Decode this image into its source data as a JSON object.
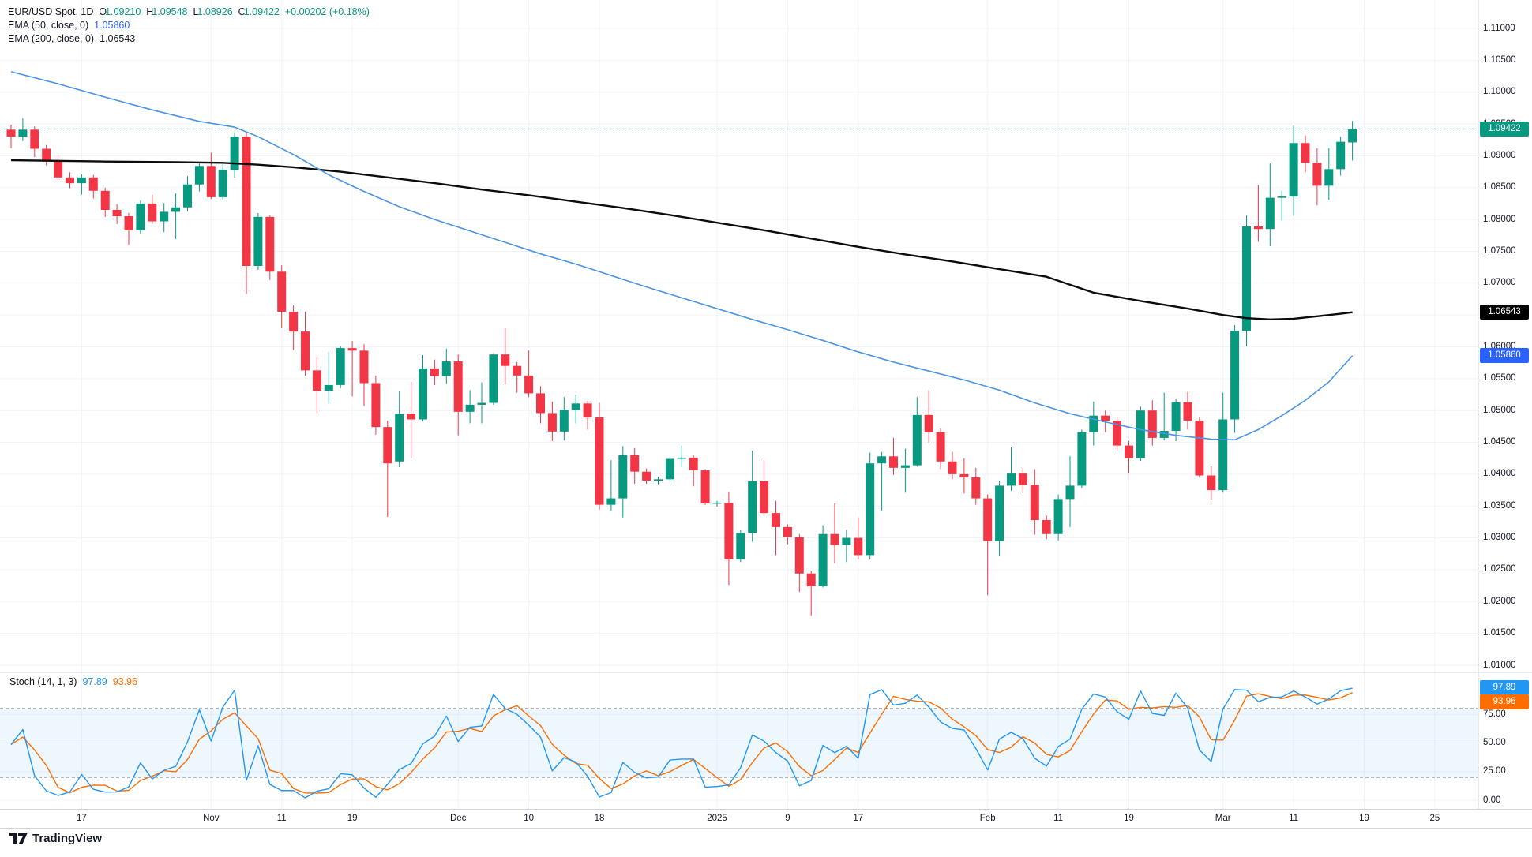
{
  "header": {
    "symbol_label": "EUR/USD Spot, 1D",
    "ohlc": [
      {
        "k": "O",
        "v": "1.09210"
      },
      {
        "k": "H",
        "v": "1.09548"
      },
      {
        "k": "L",
        "v": "1.08926"
      },
      {
        "k": "C",
        "v": "1.09422"
      }
    ],
    "change": "+0.00202 (+0.18%)",
    "ema50_label": "EMA (50, close, 0)",
    "ema50_value": "1.05860",
    "ema200_label": "EMA (200, close, 0)",
    "ema200_value": "1.06543"
  },
  "stoch_header": {
    "label": "Stoch (14, 1, 3)",
    "k_value": "97.89",
    "d_value": "93.96"
  },
  "footer": {
    "logo_text": "TradingView"
  },
  "colors": {
    "up": "#089981",
    "down": "#f23645",
    "ema50": "#4a94e4",
    "ema50_badge": "#2962ff",
    "ema200": "#0c0c0c",
    "ema200_badge": "#000000",
    "stoch_k": "#2196f3",
    "stoch_d": "#ff6d00",
    "grid": "#f0f3fa",
    "band_line": "#696d78",
    "band_fill": "#2196f3",
    "axis_text": "#131722",
    "border": "#d1d4dc",
    "last_price_line": "#089981"
  },
  "chart_data": {
    "type": "candlestick",
    "symbol": "EUR/USD Spot",
    "timeframe": "1D",
    "price_axis": {
      "min": 1.01,
      "max": 1.11,
      "tick_step": 0.005
    },
    "y_tick_labels": [
      "1.11000",
      "1.10500",
      "1.10000",
      "1.09500",
      "1.09000",
      "1.08500",
      "1.08000",
      "1.07500",
      "1.07000",
      "1.06500",
      "1.06000",
      "1.05500",
      "1.05000",
      "1.04500",
      "1.04000",
      "1.03500",
      "1.03000",
      "1.02500",
      "1.02000",
      "1.01500",
      "1.01000"
    ],
    "stoch_axis": {
      "min": 0,
      "max": 100,
      "ticks": [
        75,
        50,
        25,
        0
      ],
      "tick_labels": [
        "75.00",
        "50.00",
        "25.00",
        "0.00"
      ],
      "bands": [
        80,
        20
      ]
    },
    "x_ticks": [
      {
        "label": "17",
        "i": 6
      },
      {
        "label": "Nov",
        "i": 17
      },
      {
        "label": "11",
        "i": 23
      },
      {
        "label": "19",
        "i": 29
      },
      {
        "label": "Dec",
        "i": 38
      },
      {
        "label": "10",
        "i": 44
      },
      {
        "label": "18",
        "i": 50
      },
      {
        "label": "2025",
        "i": 60
      },
      {
        "label": "9",
        "i": 66
      },
      {
        "label": "17",
        "i": 72
      },
      {
        "label": "Feb",
        "i": 83
      },
      {
        "label": "11",
        "i": 89
      },
      {
        "label": "19",
        "i": 95
      },
      {
        "label": "Mar",
        "i": 103
      },
      {
        "label": "11",
        "i": 109
      },
      {
        "label": "19",
        "i": 115
      },
      {
        "label": "25",
        "i": 121
      }
    ],
    "last_price": 1.09422,
    "badges": [
      {
        "text": "1.09422",
        "price": 1.09422,
        "bg": "#089981"
      },
      {
        "text": "1.06543",
        "price": 1.06543,
        "bg": "#000000"
      },
      {
        "text": "1.05860",
        "price": 1.0586,
        "bg": "#2962ff"
      }
    ],
    "indicator": {
      "name": "Stoch",
      "params": [
        14,
        1,
        3
      ],
      "k": 97.89,
      "d": 93.96
    },
    "series": [
      {
        "name": "EMA 50",
        "points": [
          [
            0,
            1.1032
          ],
          [
            4,
            1.1013
          ],
          [
            8,
            1.0992
          ],
          [
            12,
            1.0972
          ],
          [
            16,
            1.0954
          ],
          [
            19,
            1.0945
          ],
          [
            21,
            1.093
          ],
          [
            24,
            1.0902
          ],
          [
            27,
            1.087
          ],
          [
            30,
            1.0844
          ],
          [
            33,
            1.082
          ],
          [
            36,
            1.08
          ],
          [
            39,
            1.0782
          ],
          [
            42,
            1.0764
          ],
          [
            45,
            1.0746
          ],
          [
            48,
            1.073
          ],
          [
            51,
            1.0712
          ],
          [
            54,
            1.0694
          ],
          [
            57,
            1.0677
          ],
          [
            60,
            1.066
          ],
          [
            63,
            1.0643
          ],
          [
            66,
            1.0627
          ],
          [
            69,
            1.061
          ],
          [
            72,
            1.0592
          ],
          [
            75,
            1.0576
          ],
          [
            78,
            1.0562
          ],
          [
            81,
            1.0548
          ],
          [
            84,
            1.0532
          ],
          [
            87,
            1.0512
          ],
          [
            90,
            1.0495
          ],
          [
            93,
            1.0482
          ],
          [
            96,
            1.047
          ],
          [
            99,
            1.0461
          ],
          [
            102,
            1.0455
          ],
          [
            104,
            1.0454
          ],
          [
            106,
            1.047
          ],
          [
            108,
            1.0492
          ],
          [
            110,
            1.0516
          ],
          [
            112,
            1.0545
          ],
          [
            114,
            1.0586
          ]
        ]
      },
      {
        "name": "EMA 200",
        "points": [
          [
            0,
            1.0893
          ],
          [
            8,
            1.0891
          ],
          [
            14,
            1.089
          ],
          [
            18,
            1.0889
          ],
          [
            21,
            1.0886
          ],
          [
            24,
            1.0882
          ],
          [
            28,
            1.0875
          ],
          [
            32,
            1.0866
          ],
          [
            36,
            1.0857
          ],
          [
            40,
            1.0847
          ],
          [
            44,
            1.0838
          ],
          [
            48,
            1.0828
          ],
          [
            52,
            1.0818
          ],
          [
            56,
            1.0807
          ],
          [
            60,
            1.0795
          ],
          [
            64,
            1.0783
          ],
          [
            68,
            1.077
          ],
          [
            72,
            1.0757
          ],
          [
            76,
            1.0745
          ],
          [
            80,
            1.0734
          ],
          [
            84,
            1.0722
          ],
          [
            88,
            1.071
          ],
          [
            92,
            1.0685
          ],
          [
            96,
            1.0672
          ],
          [
            100,
            1.066
          ],
          [
            103,
            1.065
          ],
          [
            105,
            1.0645
          ],
          [
            107,
            1.0643
          ],
          [
            109,
            1.0644
          ],
          [
            111,
            1.0648
          ],
          [
            113,
            1.0652
          ],
          [
            114,
            1.06543
          ]
        ]
      }
    ],
    "candles": [
      [
        "Oct 9",
        1.0941,
        1.0949,
        1.0912,
        1.093
      ],
      [
        "Oct 10",
        1.093,
        1.0959,
        1.0923,
        1.0941
      ],
      [
        "Oct 11",
        1.0941,
        1.0946,
        1.0898,
        1.0911
      ],
      [
        "Oct 14",
        1.0911,
        1.0917,
        1.0885,
        1.0891
      ],
      [
        "Oct 15",
        1.0891,
        1.09,
        1.0862,
        1.0866
      ],
      [
        "Oct 16",
        1.0866,
        1.0874,
        1.0849,
        1.0857
      ],
      [
        "Oct 17",
        1.0857,
        1.0871,
        1.0839,
        1.0866
      ],
      [
        "Oct 18",
        1.0866,
        1.087,
        1.0833,
        1.0845
      ],
      [
        "Oct 21",
        1.0845,
        1.085,
        1.0804,
        1.0815
      ],
      [
        "Oct 22",
        1.0815,
        1.0824,
        1.0793,
        1.0805
      ],
      [
        "Oct 23",
        1.0805,
        1.081,
        1.076,
        1.0783
      ],
      [
        "Oct 24",
        1.0783,
        1.083,
        1.0778,
        1.0825
      ],
      [
        "Oct 25",
        1.0825,
        1.0839,
        1.0793,
        1.0797
      ],
      [
        "Oct 28",
        1.0797,
        1.0826,
        1.078,
        1.0812
      ],
      [
        "Oct 29",
        1.0812,
        1.0841,
        1.0769,
        1.0819
      ],
      [
        "Oct 30",
        1.0819,
        1.0868,
        1.0813,
        1.0855
      ],
      [
        "Oct 31",
        1.0855,
        1.0888,
        1.0844,
        1.0884
      ],
      [
        "Nov 1",
        1.0884,
        1.0905,
        1.0832,
        1.0835
      ],
      [
        "Nov 4",
        1.0835,
        1.0887,
        1.083,
        1.0878
      ],
      [
        "Nov 5",
        1.0878,
        1.0937,
        1.0866,
        1.093
      ],
      [
        "Nov 6",
        1.093,
        1.0937,
        1.0683,
        1.0727
      ],
      [
        "Nov 7",
        1.0727,
        1.081,
        1.0721,
        1.0804
      ],
      [
        "Nov 8",
        1.0804,
        1.0806,
        1.0705,
        1.0718
      ],
      [
        "Nov 11",
        1.0718,
        1.0728,
        1.0629,
        1.0655
      ],
      [
        "Nov 12",
        1.0655,
        1.0665,
        1.0595,
        1.0624
      ],
      [
        "Nov 13",
        1.0624,
        1.0655,
        1.0555,
        1.0563
      ],
      [
        "Nov 14",
        1.0563,
        1.0583,
        1.0496,
        1.0531
      ],
      [
        "Nov 15",
        1.0531,
        1.0592,
        1.0511,
        1.054
      ],
      [
        "Nov 18",
        1.054,
        1.0601,
        1.0535,
        1.0598
      ],
      [
        "Nov 19",
        1.0598,
        1.0609,
        1.0522,
        1.0594
      ],
      [
        "Nov 20",
        1.0594,
        1.0604,
        1.0507,
        1.0543
      ],
      [
        "Nov 21",
        1.0543,
        1.0555,
        1.0462,
        1.0474
      ],
      [
        "Nov 22",
        1.0474,
        1.0484,
        1.0333,
        1.0417
      ],
      [
        "Nov 25",
        1.042,
        1.053,
        1.0411,
        1.0495
      ],
      [
        "Nov 26",
        1.0495,
        1.0545,
        1.0425,
        1.0486
      ],
      [
        "Nov 27",
        1.0486,
        1.0587,
        1.0483,
        1.0566
      ],
      [
        "Nov 28",
        1.0566,
        1.058,
        1.054,
        1.0554
      ],
      [
        "Nov 29",
        1.0554,
        1.0597,
        1.0542,
        1.0577
      ],
      [
        "Dec 2",
        1.0577,
        1.0588,
        1.0461,
        1.0498
      ],
      [
        "Dec 3",
        1.0498,
        1.0532,
        1.048,
        1.0509
      ],
      [
        "Dec 4",
        1.0509,
        1.0544,
        1.048,
        1.0512
      ],
      [
        "Dec 5",
        1.0512,
        1.059,
        1.0509,
        1.0588
      ],
      [
        "Dec 6",
        1.0588,
        1.0629,
        1.0541,
        1.057
      ],
      [
        "Dec 9",
        1.057,
        1.0576,
        1.0528,
        1.0555
      ],
      [
        "Dec 10",
        1.0555,
        1.0594,
        1.0521,
        1.0527
      ],
      [
        "Dec 11",
        1.0527,
        1.0538,
        1.048,
        1.0496
      ],
      [
        "Dec 12",
        1.0496,
        1.0514,
        1.0452,
        1.0467
      ],
      [
        "Dec 13",
        1.0467,
        1.0521,
        1.0453,
        1.0501
      ],
      [
        "Dec 16",
        1.0501,
        1.0525,
        1.048,
        1.0511
      ],
      [
        "Dec 17",
        1.0511,
        1.0515,
        1.047,
        1.0489
      ],
      [
        "Dec 18",
        1.0489,
        1.0512,
        1.0344,
        1.0352
      ],
      [
        "Dec 19",
        1.0352,
        1.0422,
        1.0343,
        1.0362
      ],
      [
        "Dec 20",
        1.0362,
        1.0444,
        1.0332,
        1.043
      ],
      [
        "Dec 23",
        1.043,
        1.0441,
        1.0385,
        1.0404
      ],
      [
        "Dec 24",
        1.0404,
        1.0409,
        1.0385,
        1.039
      ],
      [
        "Dec 25",
        1.039,
        1.0396,
        1.0384,
        1.0392
      ],
      [
        "Dec 26",
        1.0392,
        1.0428,
        1.0387,
        1.0424
      ],
      [
        "Dec 27",
        1.0424,
        1.0445,
        1.0411,
        1.0426
      ],
      [
        "Dec 30",
        1.0426,
        1.043,
        1.0381,
        1.0406
      ],
      [
        "Dec 31",
        1.0406,
        1.0408,
        1.0352,
        1.0354
      ],
      [
        "Jan 1",
        1.0354,
        1.0358,
        1.0349,
        1.0355
      ],
      [
        "Jan 2",
        1.0355,
        1.0372,
        1.0226,
        1.0266
      ],
      [
        "Jan 3",
        1.0266,
        1.0312,
        1.0262,
        1.0308
      ],
      [
        "Jan 6",
        1.0308,
        1.0437,
        1.0294,
        1.0389
      ],
      [
        "Jan 7",
        1.0389,
        1.0422,
        1.0334,
        1.0339
      ],
      [
        "Jan 8",
        1.0339,
        1.0358,
        1.0273,
        1.0317
      ],
      [
        "Jan 9",
        1.0317,
        1.0321,
        1.029,
        1.0301
      ],
      [
        "Jan 10",
        1.0301,
        1.0306,
        1.0215,
        1.0244
      ],
      [
        "Jan 13",
        1.0244,
        1.0248,
        1.0178,
        1.0224
      ],
      [
        "Jan 14",
        1.0224,
        1.032,
        1.0222,
        1.0306
      ],
      [
        "Jan 15",
        1.0306,
        1.0354,
        1.026,
        1.0289
      ],
      [
        "Jan 16",
        1.0289,
        1.0313,
        1.0262,
        1.03
      ],
      [
        "Jan 17",
        1.03,
        1.0332,
        1.0266,
        1.0273
      ],
      [
        "Jan 20",
        1.0273,
        1.0434,
        1.0266,
        1.0417
      ],
      [
        "Jan 21",
        1.0417,
        1.0435,
        1.0343,
        1.0428
      ],
      [
        "Jan 22",
        1.0428,
        1.0457,
        1.0399,
        1.041
      ],
      [
        "Jan 23",
        1.041,
        1.044,
        1.0371,
        1.0414
      ],
      [
        "Jan 24",
        1.0414,
        1.0521,
        1.0412,
        1.0493
      ],
      [
        "Jan 27",
        1.0493,
        1.0532,
        1.0449,
        1.0466
      ],
      [
        "Jan 28",
        1.0466,
        1.0472,
        1.0408,
        1.042
      ],
      [
        "Jan 29",
        1.042,
        1.0435,
        1.0392,
        1.04
      ],
      [
        "Jan 30",
        1.04,
        1.0425,
        1.037,
        1.0395
      ],
      [
        "Jan 31",
        1.0395,
        1.041,
        1.0352,
        1.0362
      ],
      [
        "Feb 3",
        1.0362,
        1.0368,
        1.021,
        1.0295
      ],
      [
        "Feb 4",
        1.0295,
        1.039,
        1.0272,
        1.0382
      ],
      [
        "Feb 5",
        1.0382,
        1.0442,
        1.0374,
        1.0401
      ],
      [
        "Feb 6",
        1.0401,
        1.041,
        1.037,
        1.0383
      ],
      [
        "Feb 7",
        1.0383,
        1.0408,
        1.0305,
        1.0328
      ],
      [
        "Feb 10",
        1.0328,
        1.0335,
        1.0298,
        1.0306
      ],
      [
        "Feb 11",
        1.0306,
        1.0368,
        1.0296,
        1.0361
      ],
      [
        "Feb 12",
        1.0361,
        1.0428,
        1.0317,
        1.0382
      ],
      [
        "Feb 13",
        1.0382,
        1.047,
        1.0378,
        1.0466
      ],
      [
        "Feb 14",
        1.0466,
        1.0514,
        1.0445,
        1.0492
      ],
      [
        "Feb 17",
        1.0492,
        1.05,
        1.0466,
        1.0484
      ],
      [
        "Feb 18",
        1.0484,
        1.049,
        1.0436,
        1.0445
      ],
      [
        "Feb 19",
        1.0445,
        1.0452,
        1.0401,
        1.0425
      ],
      [
        "Feb 20",
        1.0425,
        1.0506,
        1.0421,
        1.05
      ],
      [
        "Feb 21",
        1.05,
        1.0516,
        1.0445,
        1.0457
      ],
      [
        "Feb 24",
        1.0457,
        1.0528,
        1.0453,
        1.0468
      ],
      [
        "Feb 25",
        1.0468,
        1.0518,
        1.0452,
        1.0513
      ],
      [
        "Feb 26",
        1.0513,
        1.0529,
        1.047,
        1.0484
      ],
      [
        "Feb 27",
        1.0484,
        1.049,
        1.0395,
        1.0398
      ],
      [
        "Feb 28",
        1.0398,
        1.0412,
        1.036,
        1.0375
      ],
      [
        "Mar 3",
        1.0375,
        1.0528,
        1.0371,
        1.0486
      ],
      [
        "Mar 4",
        1.0486,
        1.0634,
        1.0465,
        1.0625
      ],
      [
        "Mar 5",
        1.0625,
        1.0806,
        1.0601,
        1.0789
      ],
      [
        "Mar 6",
        1.0789,
        1.0854,
        1.0765,
        1.0785
      ],
      [
        "Mar 7",
        1.0785,
        1.0888,
        1.0758,
        1.0834
      ],
      [
        "Mar 10",
        1.0834,
        1.0845,
        1.0798,
        1.0836
      ],
      [
        "Mar 11",
        1.0836,
        1.0947,
        1.0806,
        1.092
      ],
      [
        "Mar 12",
        1.092,
        1.0932,
        1.0874,
        1.0889
      ],
      [
        "Mar 13",
        1.0889,
        1.0912,
        1.0822,
        1.0853
      ],
      [
        "Mar 14",
        1.0853,
        1.0912,
        1.0831,
        1.0879
      ],
      [
        "Mar 17",
        1.0879,
        1.093,
        1.0869,
        1.0922
      ],
      [
        "Mar 18",
        1.0921,
        1.09548,
        1.08926,
        1.09422
      ]
    ]
  }
}
